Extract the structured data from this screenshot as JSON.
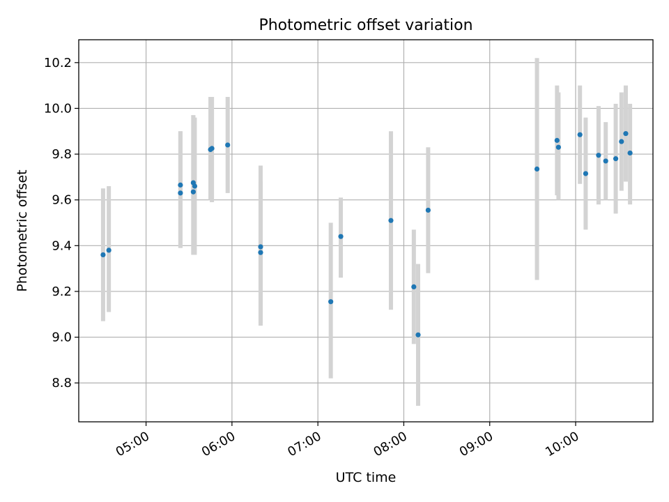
{
  "chart_data": {
    "type": "scatter",
    "title": "Photometric offset variation",
    "xlabel": "UTC time",
    "ylabel": "Photometric offset",
    "x_unit": "hours (UTC)",
    "xlim": [
      "04:13",
      "10:54"
    ],
    "ylim": [
      8.63,
      10.3
    ],
    "grid": true,
    "x_ticks": [
      "05:00",
      "06:00",
      "07:00",
      "08:00",
      "09:00",
      "10:00"
    ],
    "y_ticks": [
      8.8,
      9.0,
      9.2,
      9.4,
      9.6,
      9.8,
      10.0,
      10.2
    ],
    "colors": {
      "points": "#1f77b4",
      "error_bars": "#d3d3d3",
      "grid": "#b0b0b0"
    },
    "series": [
      {
        "points": [
          {
            "x": "04:30",
            "y": 9.36,
            "ylow": 9.07,
            "yhigh": 9.65
          },
          {
            "x": "04:34",
            "y": 9.38,
            "ylow": 9.11,
            "yhigh": 9.66
          },
          {
            "x": "05:24",
            "y": 9.665,
            "ylow": 9.39,
            "yhigh": 9.9
          },
          {
            "x": "05:24",
            "y": 9.63,
            "ylow": 9.39,
            "yhigh": 9.9
          },
          {
            "x": "05:33",
            "y": 9.675,
            "ylow": 9.36,
            "yhigh": 9.97
          },
          {
            "x": "05:33",
            "y": 9.635,
            "ylow": 9.36,
            "yhigh": 9.97
          },
          {
            "x": "05:34",
            "y": 9.66,
            "ylow": 9.36,
            "yhigh": 9.96
          },
          {
            "x": "05:45",
            "y": 9.82,
            "ylow": 9.6,
            "yhigh": 10.05
          },
          {
            "x": "05:46",
            "y": 9.825,
            "ylow": 9.59,
            "yhigh": 10.05
          },
          {
            "x": "05:57",
            "y": 9.84,
            "ylow": 9.63,
            "yhigh": 10.05
          },
          {
            "x": "06:20",
            "y": 9.395,
            "ylow": 9.05,
            "yhigh": 9.75
          },
          {
            "x": "06:20",
            "y": 9.37,
            "ylow": 9.06,
            "yhigh": 9.68
          },
          {
            "x": "07:09",
            "y": 9.155,
            "ylow": 8.82,
            "yhigh": 9.5
          },
          {
            "x": "07:16",
            "y": 9.44,
            "ylow": 9.26,
            "yhigh": 9.61
          },
          {
            "x": "07:51",
            "y": 9.51,
            "ylow": 9.12,
            "yhigh": 9.9
          },
          {
            "x": "08:07",
            "y": 9.22,
            "ylow": 8.97,
            "yhigh": 9.47
          },
          {
            "x": "08:10",
            "y": 9.01,
            "ylow": 8.7,
            "yhigh": 9.32
          },
          {
            "x": "08:17",
            "y": 9.555,
            "ylow": 9.28,
            "yhigh": 9.83
          },
          {
            "x": "09:33",
            "y": 9.735,
            "ylow": 9.25,
            "yhigh": 10.22
          },
          {
            "x": "09:47",
            "y": 9.86,
            "ylow": 9.62,
            "yhigh": 10.1
          },
          {
            "x": "09:48",
            "y": 9.83,
            "ylow": 9.6,
            "yhigh": 10.07
          },
          {
            "x": "10:03",
            "y": 9.885,
            "ylow": 9.67,
            "yhigh": 10.1
          },
          {
            "x": "10:07",
            "y": 9.715,
            "ylow": 9.47,
            "yhigh": 9.96
          },
          {
            "x": "10:16",
            "y": 9.795,
            "ylow": 9.58,
            "yhigh": 10.01
          },
          {
            "x": "10:21",
            "y": 9.77,
            "ylow": 9.6,
            "yhigh": 9.94
          },
          {
            "x": "10:28",
            "y": 9.78,
            "ylow": 9.54,
            "yhigh": 10.02
          },
          {
            "x": "10:32",
            "y": 9.855,
            "ylow": 9.64,
            "yhigh": 10.07
          },
          {
            "x": "10:35",
            "y": 9.89,
            "ylow": 9.68,
            "yhigh": 10.1
          },
          {
            "x": "10:38",
            "y": 9.805,
            "ylow": 9.58,
            "yhigh": 10.02
          }
        ]
      }
    ]
  }
}
